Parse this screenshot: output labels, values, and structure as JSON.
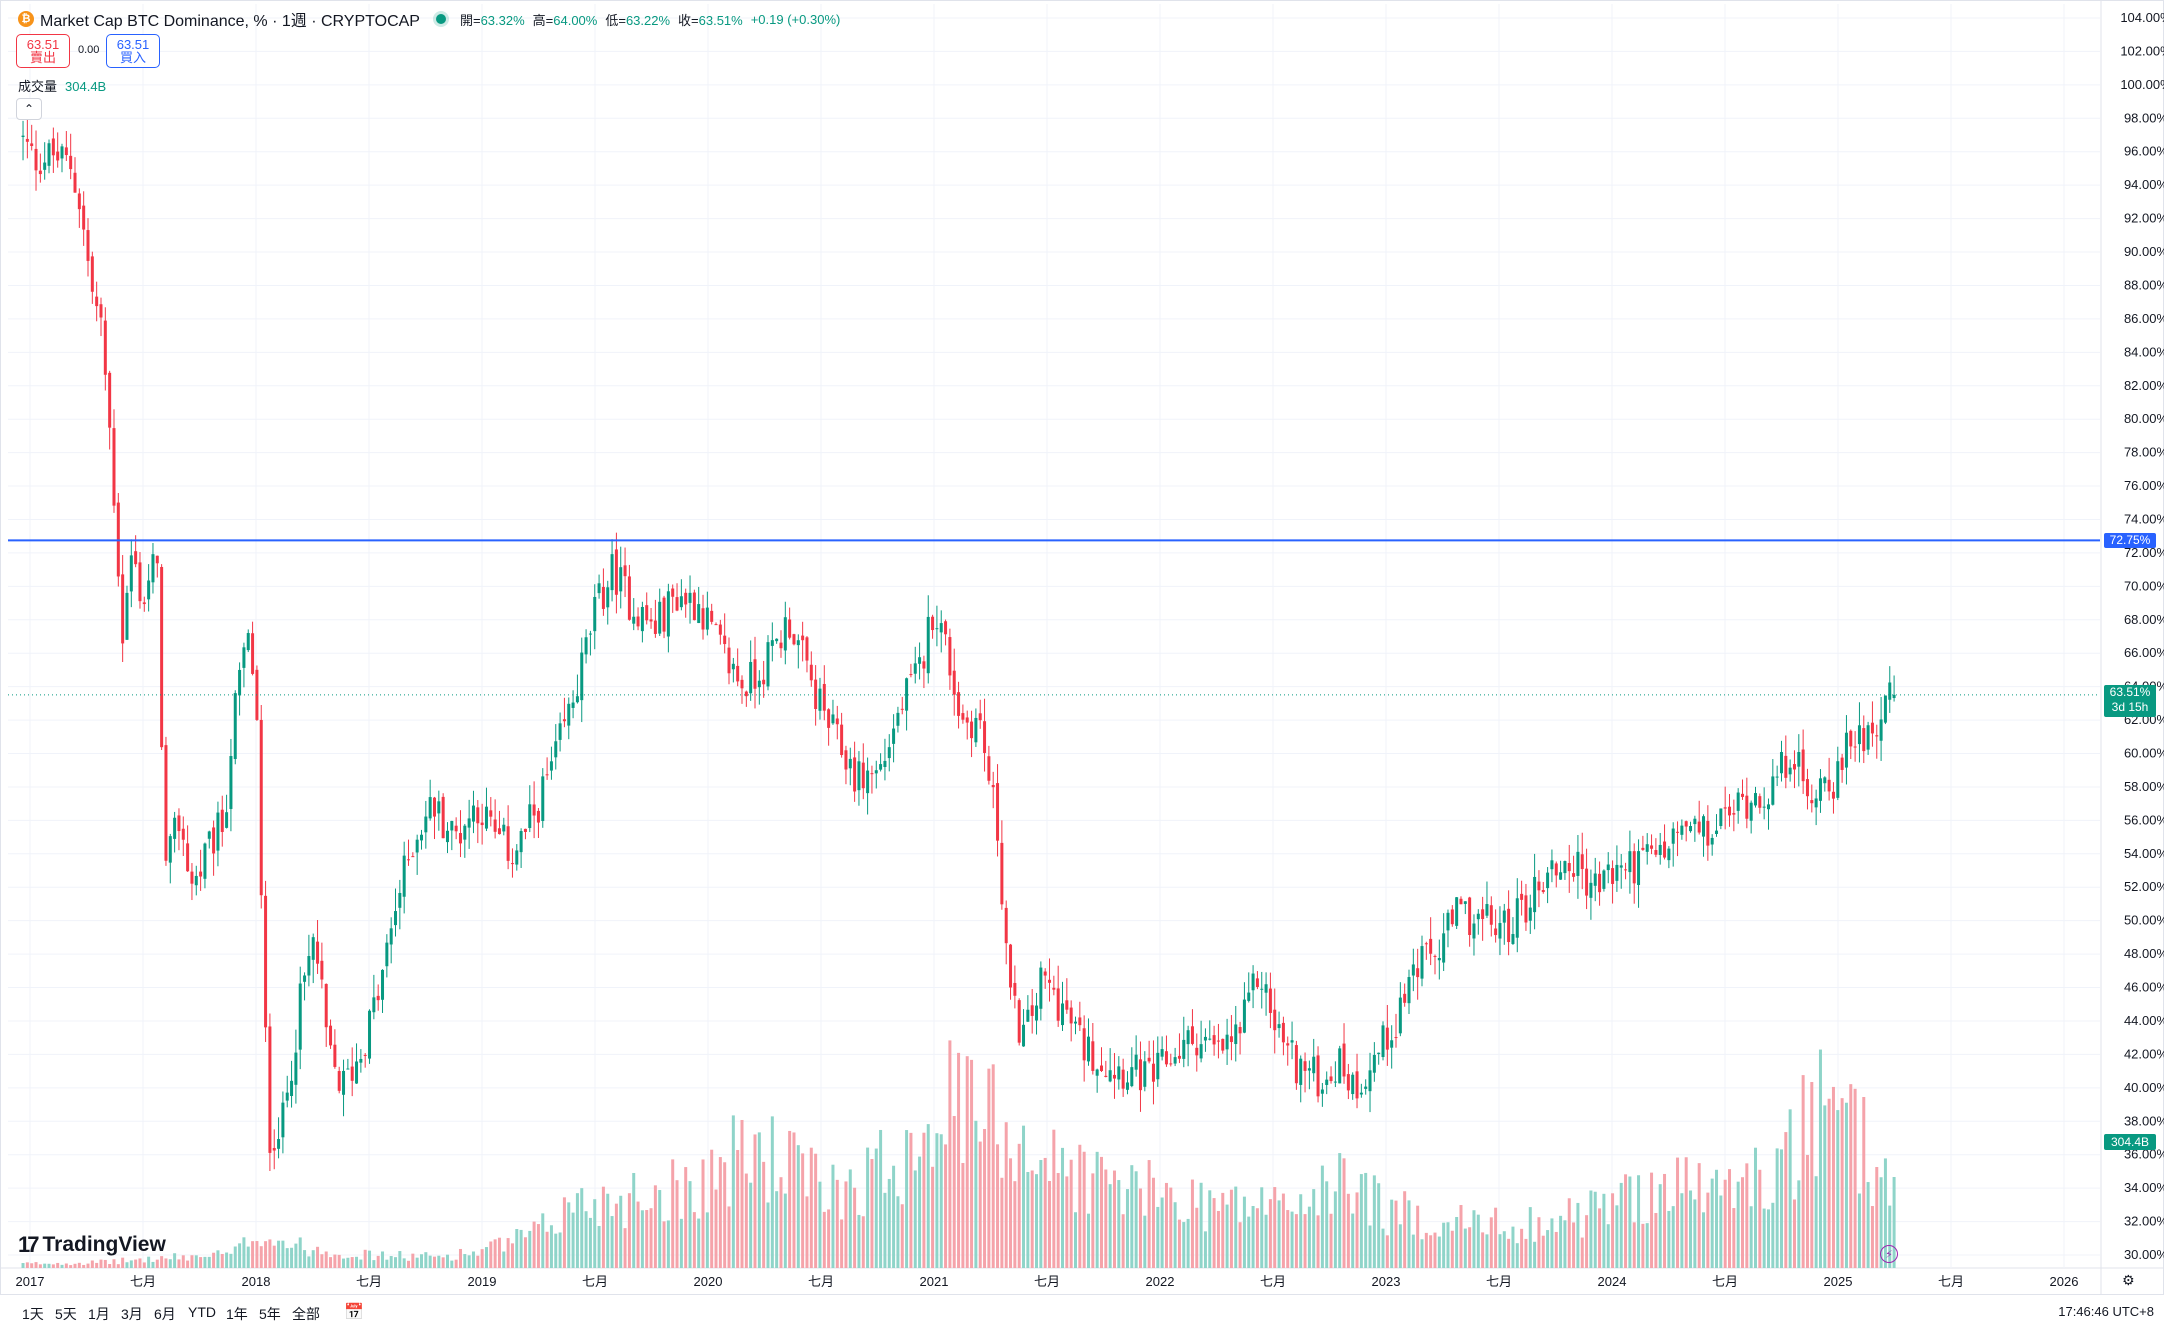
{
  "header": {
    "symbol_icon": "₿",
    "title": "Market Cap BTC Dominance, % · 1週 · CRYPTOCAP",
    "ohlc": [
      {
        "k": "開=",
        "v": "63.32%"
      },
      {
        "k": "高=",
        "v": "64.00%"
      },
      {
        "k": "低=",
        "v": "63.22%"
      },
      {
        "k": "收=",
        "v": "63.51%"
      }
    ],
    "change": "+0.19 (+0.30%)"
  },
  "trade": {
    "sell_price": "63.51",
    "sell_label": "賣出",
    "spread": "0.00",
    "buy_price": "63.51",
    "buy_label": "買入"
  },
  "volume_legend": {
    "label": "成交量",
    "value": "304.4B"
  },
  "price_labels": {
    "hline": "72.75%",
    "last_price": "63.51%",
    "countdown": "3d 15h",
    "last_volume": "304.4B"
  },
  "logo": {
    "mark": "17",
    "text": "TradingView"
  },
  "bottom": {
    "ranges": [
      "1天",
      "5天",
      "1月",
      "3月",
      "6月",
      "YTD",
      "1年",
      "5年",
      "全部"
    ],
    "calendar_icon": "calendar-icon",
    "clock": "17:46:46 UTC+8"
  },
  "colors": {
    "up": "#089981",
    "down": "#f23645",
    "hline": "#2962ff",
    "vol_up": "#8fd4c9",
    "vol_down": "#f5a3aa"
  },
  "chart_data": {
    "type": "candlestick",
    "title": "Market Cap BTC Dominance, % · 1週 · CRYPTOCAP",
    "ylabel": "%",
    "ylim": [
      29.5,
      105
    ],
    "y_ticks": [
      "104.00%",
      "102.00%",
      "100.00%",
      "98.00%",
      "96.00%",
      "94.00%",
      "92.00%",
      "90.00%",
      "88.00%",
      "86.00%",
      "84.00%",
      "82.00%",
      "80.00%",
      "78.00%",
      "76.00%",
      "74.00%",
      "72.00%",
      "70.00%",
      "68.00%",
      "66.00%",
      "64.00%",
      "62.00%",
      "60.00%",
      "58.00%",
      "56.00%",
      "54.00%",
      "52.00%",
      "50.00%",
      "48.00%",
      "46.00%",
      "44.00%",
      "42.00%",
      "40.00%",
      "38.00%",
      "36.00%",
      "34.00%",
      "32.00%",
      "30.00%"
    ],
    "x_ticks": [
      {
        "label": "2017",
        "t": 2017.0
      },
      {
        "label": "七月",
        "t": 2017.5
      },
      {
        "label": "2018",
        "t": 2018.0
      },
      {
        "label": "七月",
        "t": 2018.5
      },
      {
        "label": "2019",
        "t": 2019.0
      },
      {
        "label": "七月",
        "t": 2019.5
      },
      {
        "label": "2020",
        "t": 2020.0
      },
      {
        "label": "七月",
        "t": 2020.5
      },
      {
        "label": "2021",
        "t": 2021.0
      },
      {
        "label": "七月",
        "t": 2021.5
      },
      {
        "label": "2022",
        "t": 2022.0
      },
      {
        "label": "七月",
        "t": 2022.5
      },
      {
        "label": "2023",
        "t": 2023.0
      },
      {
        "label": "七月",
        "t": 2023.5
      },
      {
        "label": "2024",
        "t": 2024.0
      },
      {
        "label": "七月",
        "t": 2024.5
      },
      {
        "label": "2025",
        "t": 2025.0
      },
      {
        "label": "七月",
        "t": 2025.5
      },
      {
        "label": "2026",
        "t": 2026.0
      }
    ],
    "horizontal_line": 72.75,
    "last_close": 63.51,
    "close_path": [
      [
        2016.95,
        97.0
      ],
      [
        2017.02,
        95.5
      ],
      [
        2017.1,
        95.8
      ],
      [
        2017.18,
        95.2
      ],
      [
        2017.22,
        93.0
      ],
      [
        2017.27,
        88.0
      ],
      [
        2017.32,
        85.0
      ],
      [
        2017.36,
        78.0
      ],
      [
        2017.41,
        67.0
      ],
      [
        2017.45,
        72.0
      ],
      [
        2017.5,
        69.0
      ],
      [
        2017.56,
        72.0
      ],
      [
        2017.6,
        53.0
      ],
      [
        2017.66,
        56.0
      ],
      [
        2017.72,
        52.0
      ],
      [
        2017.8,
        54.5
      ],
      [
        2017.86,
        56.0
      ],
      [
        2017.9,
        62.0
      ],
      [
        2017.96,
        67.0
      ],
      [
        2018.0,
        64.0
      ],
      [
        2018.03,
        47.0
      ],
      [
        2018.06,
        37.0
      ],
      [
        2018.12,
        38.0
      ],
      [
        2018.2,
        45.5
      ],
      [
        2018.26,
        49.0
      ],
      [
        2018.32,
        42.0
      ],
      [
        2018.38,
        40.0
      ],
      [
        2018.46,
        42.0
      ],
      [
        2018.55,
        46.0
      ],
      [
        2018.62,
        51.0
      ],
      [
        2018.7,
        55.0
      ],
      [
        2018.78,
        57.0
      ],
      [
        2018.88,
        55.0
      ],
      [
        2018.98,
        57.0
      ],
      [
        2019.06,
        55.0
      ],
      [
        2019.14,
        54.0
      ],
      [
        2019.22,
        56.0
      ],
      [
        2019.32,
        59.5
      ],
      [
        2019.42,
        64.0
      ],
      [
        2019.5,
        68.5
      ],
      [
        2019.58,
        71.0
      ],
      [
        2019.66,
        69.0
      ],
      [
        2019.76,
        67.5
      ],
      [
        2019.86,
        69.5
      ],
      [
        2019.96,
        69.0
      ],
      [
        2020.06,
        66.0
      ],
      [
        2020.16,
        64.0
      ],
      [
        2020.26,
        65.5
      ],
      [
        2020.36,
        68.0
      ],
      [
        2020.46,
        64.0
      ],
      [
        2020.56,
        61.0
      ],
      [
        2020.66,
        58.5
      ],
      [
        2020.76,
        59.0
      ],
      [
        2020.86,
        63.0
      ],
      [
        2020.94,
        65.0
      ],
      [
        2021.0,
        69.0
      ],
      [
        2021.06,
        66.0
      ],
      [
        2021.12,
        62.0
      ],
      [
        2021.2,
        62.0
      ],
      [
        2021.28,
        55.5
      ],
      [
        2021.34,
        45.0
      ],
      [
        2021.4,
        43.0
      ],
      [
        2021.48,
        46.5
      ],
      [
        2021.56,
        45.0
      ],
      [
        2021.66,
        42.5
      ],
      [
        2021.76,
        41.5
      ],
      [
        2021.86,
        41.0
      ],
      [
        2021.96,
        40.5
      ],
      [
        2022.06,
        42.0
      ],
      [
        2022.16,
        43.0
      ],
      [
        2022.26,
        42.0
      ],
      [
        2022.36,
        43.5
      ],
      [
        2022.44,
        47.0
      ],
      [
        2022.5,
        44.0
      ],
      [
        2022.6,
        41.5
      ],
      [
        2022.7,
        40.5
      ],
      [
        2022.8,
        41.5
      ],
      [
        2022.86,
        40.0
      ],
      [
        2022.96,
        42.0
      ],
      [
        2023.04,
        44.0
      ],
      [
        2023.12,
        47.0
      ],
      [
        2023.22,
        48.0
      ],
      [
        2023.32,
        50.5
      ],
      [
        2023.42,
        50.0
      ],
      [
        2023.52,
        49.5
      ],
      [
        2023.62,
        51.0
      ],
      [
        2023.72,
        53.0
      ],
      [
        2023.82,
        53.5
      ],
      [
        2023.92,
        52.0
      ],
      [
        2024.02,
        53.0
      ],
      [
        2024.12,
        53.5
      ],
      [
        2024.22,
        54.0
      ],
      [
        2024.32,
        55.5
      ],
      [
        2024.42,
        55.0
      ],
      [
        2024.52,
        56.5
      ],
      [
        2024.62,
        57.5
      ],
      [
        2024.72,
        58.0
      ],
      [
        2024.8,
        60.5
      ],
      [
        2024.86,
        57.0
      ],
      [
        2024.92,
        58.5
      ],
      [
        2025.0,
        58.5
      ],
      [
        2025.06,
        61.0
      ],
      [
        2025.14,
        61.5
      ],
      [
        2025.2,
        62.5
      ],
      [
        2025.25,
        63.51
      ]
    ],
    "volume_path": [
      [
        2016.95,
        0.3
      ],
      [
        2017.3,
        0.4
      ],
      [
        2017.6,
        0.7
      ],
      [
        2017.9,
        1.0
      ],
      [
        2018.0,
        2.5
      ],
      [
        2018.2,
        1.5
      ],
      [
        2018.5,
        0.9
      ],
      [
        2018.8,
        0.8
      ],
      [
        2019.0,
        1.2
      ],
      [
        2019.25,
        2.5
      ],
      [
        2019.4,
        4.5
      ],
      [
        2019.6,
        5.0
      ],
      [
        2019.8,
        5.5
      ],
      [
        2020.0,
        6.5
      ],
      [
        2020.2,
        8.5
      ],
      [
        2020.4,
        7.0
      ],
      [
        2020.5,
        5.5
      ],
      [
        2020.7,
        6.5
      ],
      [
        2020.85,
        8.0
      ],
      [
        2021.0,
        12.0
      ],
      [
        2021.2,
        11.0
      ],
      [
        2021.35,
        10.0
      ],
      [
        2021.5,
        7.5
      ],
      [
        2021.7,
        6.5
      ],
      [
        2021.9,
        5.5
      ],
      [
        2022.1,
        5.0
      ],
      [
        2022.3,
        4.5
      ],
      [
        2022.5,
        4.5
      ],
      [
        2022.7,
        5.0
      ],
      [
        2022.85,
        6.5
      ],
      [
        2023.0,
        4.0
      ],
      [
        2023.2,
        3.5
      ],
      [
        2023.5,
        3.0
      ],
      [
        2023.8,
        3.5
      ],
      [
        2024.0,
        4.5
      ],
      [
        2024.2,
        6.0
      ],
      [
        2024.5,
        5.5
      ],
      [
        2024.75,
        7.0
      ],
      [
        2024.9,
        11.0
      ],
      [
        2025.05,
        9.5
      ],
      [
        2025.15,
        8.0
      ],
      [
        2025.25,
        5.5
      ]
    ],
    "volume_max": 20.0,
    "last_volume": "304.4B"
  }
}
